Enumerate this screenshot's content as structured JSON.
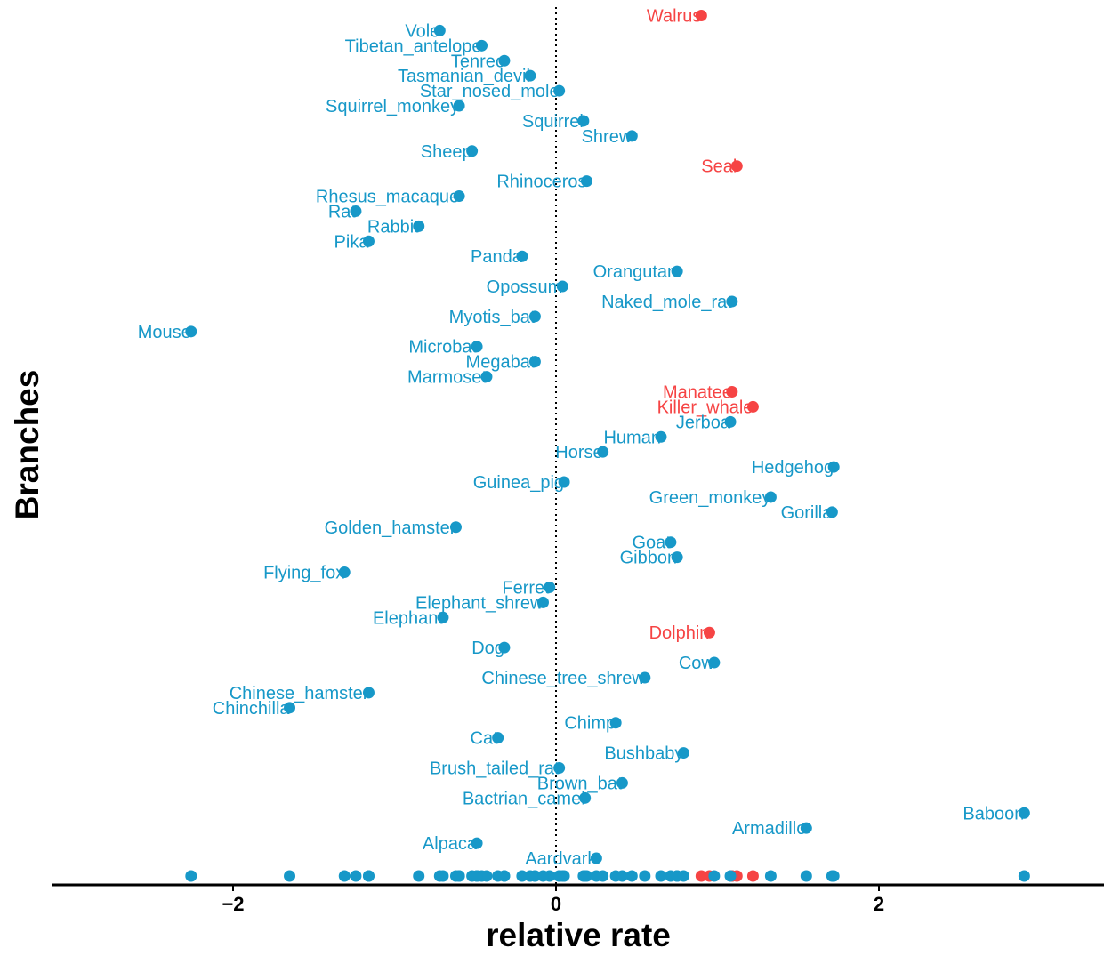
{
  "chart_data": {
    "type": "scatter",
    "xlabel": "relative rate",
    "ylabel": "Branches",
    "xlim": [
      -3.1,
      3.4
    ],
    "xticks": [
      -2,
      0,
      2
    ],
    "xtick_labels": [
      "−2",
      "0",
      "2"
    ],
    "reference_line_x": 0,
    "colors": {
      "normal": "#1798c8",
      "highlight": "#f64444"
    },
    "points": [
      {
        "label": "Walrus",
        "x": 0.9,
        "highlight": true
      },
      {
        "label": "Vole",
        "x": -0.72,
        "highlight": false
      },
      {
        "label": "Tibetan_antelope",
        "x": -0.46,
        "highlight": false
      },
      {
        "label": "Tenrec",
        "x": -0.32,
        "highlight": false
      },
      {
        "label": "Tasmanian_devil",
        "x": -0.16,
        "highlight": false
      },
      {
        "label": "Star_nosed_mole",
        "x": 0.02,
        "highlight": false
      },
      {
        "label": "Squirrel_monkey",
        "x": -0.6,
        "highlight": false
      },
      {
        "label": "Squirrel",
        "x": 0.17,
        "highlight": false
      },
      {
        "label": "Shrew",
        "x": 0.47,
        "highlight": false
      },
      {
        "label": "Sheep",
        "x": -0.52,
        "highlight": false
      },
      {
        "label": "Seal",
        "x": 1.12,
        "highlight": true
      },
      {
        "label": "Rhinoceros",
        "x": 0.19,
        "highlight": false
      },
      {
        "label": "Rhesus_macaque",
        "x": -0.6,
        "highlight": false
      },
      {
        "label": "Rat",
        "x": -1.24,
        "highlight": false
      },
      {
        "label": "Rabbit",
        "x": -0.85,
        "highlight": false
      },
      {
        "label": "Pika",
        "x": -1.16,
        "highlight": false
      },
      {
        "label": "Panda",
        "x": -0.21,
        "highlight": false
      },
      {
        "label": "Orangutan",
        "x": 0.75,
        "highlight": false
      },
      {
        "label": "Opossum",
        "x": 0.04,
        "highlight": false
      },
      {
        "label": "Naked_mole_rat",
        "x": 1.09,
        "highlight": false
      },
      {
        "label": "Myotis_bat",
        "x": -0.13,
        "highlight": false
      },
      {
        "label": "Mouse",
        "x": -2.26,
        "highlight": false
      },
      {
        "label": "Microbat",
        "x": -0.49,
        "highlight": false
      },
      {
        "label": "Megabat",
        "x": -0.13,
        "highlight": false
      },
      {
        "label": "Marmoset",
        "x": -0.43,
        "highlight": false
      },
      {
        "label": "Manatee",
        "x": 1.09,
        "highlight": true
      },
      {
        "label": "Killer_whale",
        "x": 1.22,
        "highlight": true
      },
      {
        "label": "Jerboa",
        "x": 1.08,
        "highlight": false
      },
      {
        "label": "Human",
        "x": 0.65,
        "highlight": false
      },
      {
        "label": "Horse",
        "x": 0.29,
        "highlight": false
      },
      {
        "label": "Hedgehog",
        "x": 1.72,
        "highlight": false
      },
      {
        "label": "Guinea_pig",
        "x": 0.05,
        "highlight": false
      },
      {
        "label": "Green_monkey",
        "x": 1.33,
        "highlight": false
      },
      {
        "label": "Gorilla",
        "x": 1.71,
        "highlight": false
      },
      {
        "label": "Golden_hamster",
        "x": -0.62,
        "highlight": false
      },
      {
        "label": "Goat",
        "x": 0.71,
        "highlight": false
      },
      {
        "label": "Gibbon",
        "x": 0.75,
        "highlight": false
      },
      {
        "label": "Flying_fox",
        "x": -1.31,
        "highlight": false
      },
      {
        "label": "Ferret",
        "x": -0.04,
        "highlight": false
      },
      {
        "label": "Elephant_shrew",
        "x": -0.08,
        "highlight": false
      },
      {
        "label": "Elephant",
        "x": -0.7,
        "highlight": false
      },
      {
        "label": "Dolphin",
        "x": 0.95,
        "highlight": true
      },
      {
        "label": "Dog",
        "x": -0.32,
        "highlight": false
      },
      {
        "label": "Cow",
        "x": 0.98,
        "highlight": false
      },
      {
        "label": "Chinese_tree_shrew",
        "x": 0.55,
        "highlight": false
      },
      {
        "label": "Chinese_hamster",
        "x": -1.16,
        "highlight": false
      },
      {
        "label": "Chinchilla",
        "x": -1.65,
        "highlight": false
      },
      {
        "label": "Chimp",
        "x": 0.37,
        "highlight": false
      },
      {
        "label": "Cat",
        "x": -0.36,
        "highlight": false
      },
      {
        "label": "Bushbaby",
        "x": 0.79,
        "highlight": false
      },
      {
        "label": "Brush_tailed_rat",
        "x": 0.02,
        "highlight": false
      },
      {
        "label": "Brown_bat",
        "x": 0.41,
        "highlight": false
      },
      {
        "label": "Bactrian_camel",
        "x": 0.18,
        "highlight": false
      },
      {
        "label": "Baboon",
        "x": 2.9,
        "highlight": false
      },
      {
        "label": "Armadillo",
        "x": 1.55,
        "highlight": false
      },
      {
        "label": "Alpaca",
        "x": -0.49,
        "highlight": false
      },
      {
        "label": "Aardvark",
        "x": 0.25,
        "highlight": false
      }
    ]
  }
}
